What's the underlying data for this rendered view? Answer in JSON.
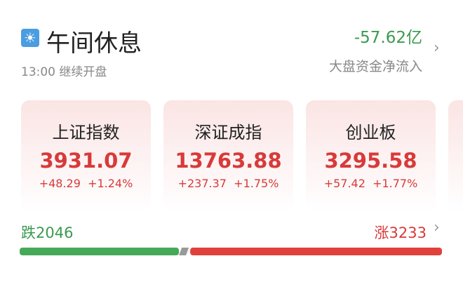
{
  "header": {
    "title": "午间休息",
    "subtitle": "13:00 继续开盘",
    "icon": "sun-icon"
  },
  "fund_flow": {
    "value": "-57.62亿",
    "label": "大盘资金净流入"
  },
  "indices": [
    {
      "name": "上证指数",
      "value": "3931.07",
      "change": "+48.29",
      "pct": "+1.24%"
    },
    {
      "name": "深证成指",
      "value": "13763.88",
      "change": "+237.37",
      "pct": "+1.75%"
    },
    {
      "name": "创业板",
      "value": "3295.58",
      "change": "+57.42",
      "pct": "+1.77%"
    }
  ],
  "breadth": {
    "down_label": "跌2046",
    "up_label": "涨3233",
    "down": 2046,
    "up": 3233
  },
  "colors": {
    "up": "#e0413b",
    "down": "#46a957",
    "flat": "#999999"
  }
}
